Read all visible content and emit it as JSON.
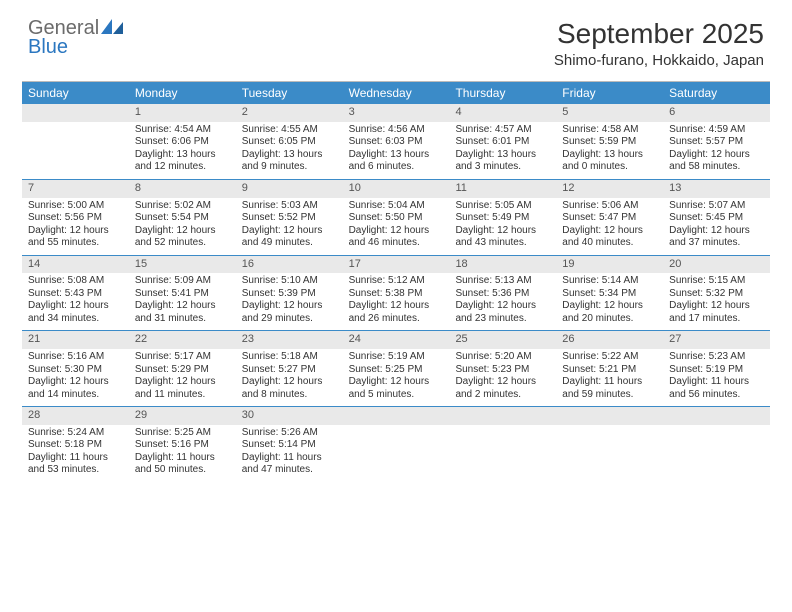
{
  "brand": {
    "part1": "General",
    "part2": "Blue"
  },
  "title": "September 2025",
  "location": "Shimo-furano, Hokkaido, Japan",
  "colors": {
    "header_bg": "#3b8bc8",
    "header_text": "#ffffff",
    "daynum_bg": "#e9e9e9",
    "text": "#333333",
    "rule": "#3b8bc8"
  },
  "days_of_week": [
    "Sunday",
    "Monday",
    "Tuesday",
    "Wednesday",
    "Thursday",
    "Friday",
    "Saturday"
  ],
  "weeks": [
    [
      {
        "empty": true
      },
      {
        "n": "1",
        "sr": "4:54 AM",
        "ss": "6:06 PM",
        "dl": "13 hours and 12 minutes."
      },
      {
        "n": "2",
        "sr": "4:55 AM",
        "ss": "6:05 PM",
        "dl": "13 hours and 9 minutes."
      },
      {
        "n": "3",
        "sr": "4:56 AM",
        "ss": "6:03 PM",
        "dl": "13 hours and 6 minutes."
      },
      {
        "n": "4",
        "sr": "4:57 AM",
        "ss": "6:01 PM",
        "dl": "13 hours and 3 minutes."
      },
      {
        "n": "5",
        "sr": "4:58 AM",
        "ss": "5:59 PM",
        "dl": "13 hours and 0 minutes."
      },
      {
        "n": "6",
        "sr": "4:59 AM",
        "ss": "5:57 PM",
        "dl": "12 hours and 58 minutes."
      }
    ],
    [
      {
        "n": "7",
        "sr": "5:00 AM",
        "ss": "5:56 PM",
        "dl": "12 hours and 55 minutes."
      },
      {
        "n": "8",
        "sr": "5:02 AM",
        "ss": "5:54 PM",
        "dl": "12 hours and 52 minutes."
      },
      {
        "n": "9",
        "sr": "5:03 AM",
        "ss": "5:52 PM",
        "dl": "12 hours and 49 minutes."
      },
      {
        "n": "10",
        "sr": "5:04 AM",
        "ss": "5:50 PM",
        "dl": "12 hours and 46 minutes."
      },
      {
        "n": "11",
        "sr": "5:05 AM",
        "ss": "5:49 PM",
        "dl": "12 hours and 43 minutes."
      },
      {
        "n": "12",
        "sr": "5:06 AM",
        "ss": "5:47 PM",
        "dl": "12 hours and 40 minutes."
      },
      {
        "n": "13",
        "sr": "5:07 AM",
        "ss": "5:45 PM",
        "dl": "12 hours and 37 minutes."
      }
    ],
    [
      {
        "n": "14",
        "sr": "5:08 AM",
        "ss": "5:43 PM",
        "dl": "12 hours and 34 minutes."
      },
      {
        "n": "15",
        "sr": "5:09 AM",
        "ss": "5:41 PM",
        "dl": "12 hours and 31 minutes."
      },
      {
        "n": "16",
        "sr": "5:10 AM",
        "ss": "5:39 PM",
        "dl": "12 hours and 29 minutes."
      },
      {
        "n": "17",
        "sr": "5:12 AM",
        "ss": "5:38 PM",
        "dl": "12 hours and 26 minutes."
      },
      {
        "n": "18",
        "sr": "5:13 AM",
        "ss": "5:36 PM",
        "dl": "12 hours and 23 minutes."
      },
      {
        "n": "19",
        "sr": "5:14 AM",
        "ss": "5:34 PM",
        "dl": "12 hours and 20 minutes."
      },
      {
        "n": "20",
        "sr": "5:15 AM",
        "ss": "5:32 PM",
        "dl": "12 hours and 17 minutes."
      }
    ],
    [
      {
        "n": "21",
        "sr": "5:16 AM",
        "ss": "5:30 PM",
        "dl": "12 hours and 14 minutes."
      },
      {
        "n": "22",
        "sr": "5:17 AM",
        "ss": "5:29 PM",
        "dl": "12 hours and 11 minutes."
      },
      {
        "n": "23",
        "sr": "5:18 AM",
        "ss": "5:27 PM",
        "dl": "12 hours and 8 minutes."
      },
      {
        "n": "24",
        "sr": "5:19 AM",
        "ss": "5:25 PM",
        "dl": "12 hours and 5 minutes."
      },
      {
        "n": "25",
        "sr": "5:20 AM",
        "ss": "5:23 PM",
        "dl": "12 hours and 2 minutes."
      },
      {
        "n": "26",
        "sr": "5:22 AM",
        "ss": "5:21 PM",
        "dl": "11 hours and 59 minutes."
      },
      {
        "n": "27",
        "sr": "5:23 AM",
        "ss": "5:19 PM",
        "dl": "11 hours and 56 minutes."
      }
    ],
    [
      {
        "n": "28",
        "sr": "5:24 AM",
        "ss": "5:18 PM",
        "dl": "11 hours and 53 minutes."
      },
      {
        "n": "29",
        "sr": "5:25 AM",
        "ss": "5:16 PM",
        "dl": "11 hours and 50 minutes."
      },
      {
        "n": "30",
        "sr": "5:26 AM",
        "ss": "5:14 PM",
        "dl": "11 hours and 47 minutes."
      },
      {
        "empty": true
      },
      {
        "empty": true
      },
      {
        "empty": true
      },
      {
        "empty": true
      }
    ]
  ],
  "labels": {
    "sunrise": "Sunrise: ",
    "sunset": "Sunset: ",
    "daylight": "Daylight: "
  }
}
